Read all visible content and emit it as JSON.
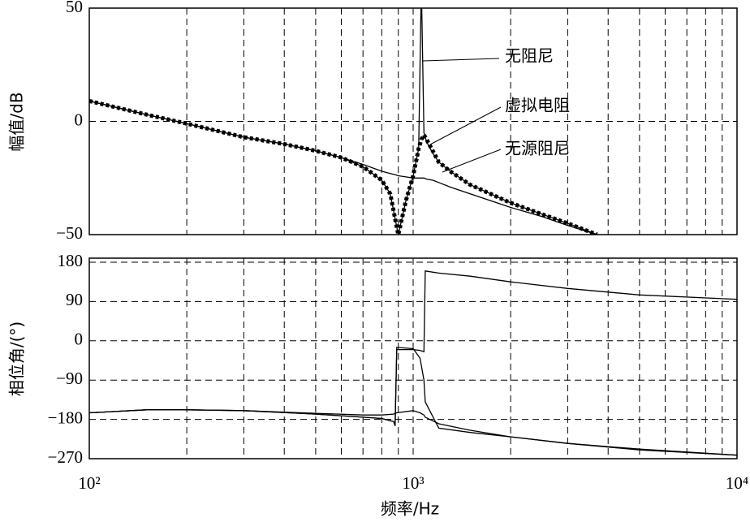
{
  "chart_data": [
    {
      "type": "line",
      "y_label": "幅值/dB",
      "log_x": true,
      "xlim": [
        100,
        10000
      ],
      "ylim": [
        -50,
        50
      ],
      "yticks": [
        50,
        0,
        {
          "value": -50,
          "label": "−50"
        }
      ],
      "grid": true,
      "x": [
        100,
        150,
        200,
        300,
        400,
        500,
        600,
        700,
        800,
        850,
        880,
        900,
        950,
        1000,
        1040,
        1060,
        1080,
        1100,
        1150,
        1200,
        1300,
        1500,
        2000,
        2500,
        3000,
        3700
      ],
      "series": [
        {
          "name": "无阻尼",
          "color": "#000000",
          "style": "solid",
          "values": [
            9,
            3,
            -1,
            -7,
            -10,
            -13,
            -16,
            -20,
            -26,
            -32,
            -43,
            -50,
            -35,
            -24,
            -12,
            60,
            -5,
            -9,
            -14,
            -18,
            -22,
            -28,
            -36,
            -41,
            -45,
            -50
          ]
        },
        {
          "name": "虚拟电阻",
          "color": "#000000",
          "style": "dotted",
          "values": [
            9,
            3,
            -1,
            -7,
            -10,
            -13,
            -16,
            -20,
            -26,
            -32,
            -43,
            -50,
            -35,
            -24,
            -12,
            -8,
            -6,
            -8,
            -13,
            -18,
            -22,
            -28,
            -36,
            -41,
            -45,
            -50
          ]
        },
        {
          "name": "无源阻尼",
          "color": "#000000",
          "style": "solid",
          "values": [
            9,
            3,
            -1,
            -7,
            -10,
            -13,
            -16,
            -19,
            -22,
            -23,
            -23.5,
            -24,
            -24.5,
            -25,
            -25,
            -25,
            -25,
            -25.5,
            -26,
            -27,
            -29,
            -32,
            -38,
            -42,
            -46,
            -50
          ]
        }
      ]
    },
    {
      "type": "line",
      "y_label": "相位角/(°)",
      "x_label": "频率/Hz",
      "log_x": true,
      "xlim": [
        100,
        10000
      ],
      "ylim": [
        -270,
        180
      ],
      "xticks": [
        {
          "value": 100,
          "label": "10²"
        },
        {
          "value": 1000,
          "label": "10³"
        },
        {
          "value": 10000,
          "label": "10⁴"
        }
      ],
      "yticks": [
        180,
        90,
        0,
        {
          "value": -90,
          "label": "−90"
        },
        {
          "value": -180,
          "label": "−180"
        },
        {
          "value": -270,
          "label": "−270"
        }
      ],
      "grid": true,
      "x": [
        100,
        150,
        200,
        300,
        500,
        700,
        800,
        870,
        880,
        890,
        1000,
        1050,
        1080,
        1090,
        1200,
        1500,
        2000,
        3000,
        5000,
        10000
      ],
      "series": [
        {
          "color": "#000000",
          "style": "solid",
          "values": [
            -165,
            -158,
            -158,
            -160,
            -168,
            -175,
            -178,
            -185,
            -195,
            -20,
            -20,
            -22,
            -25,
            160,
            155,
            148,
            135,
            120,
            105,
            95
          ]
        },
        {
          "color": "#000000",
          "style": "solid",
          "values": [
            -165,
            -158,
            -158,
            -160,
            -168,
            -175,
            -178,
            -185,
            -190,
            -15,
            -18,
            -40,
            -90,
            -140,
            -200,
            -210,
            -220,
            -235,
            -248,
            -262
          ]
        },
        {
          "color": "#000000",
          "style": "solid",
          "values": [
            -165,
            -158,
            -158,
            -160,
            -166,
            -170,
            -170,
            -168,
            -166,
            -165,
            -160,
            -165,
            -170,
            -175,
            -190,
            -205,
            -220,
            -235,
            -250,
            -262
          ]
        }
      ]
    }
  ]
}
